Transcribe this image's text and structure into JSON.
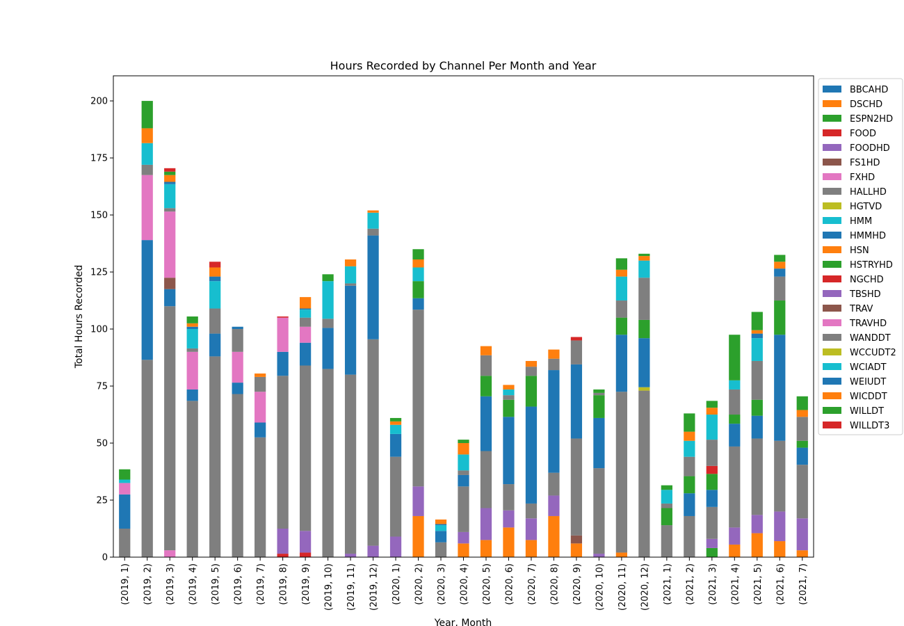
{
  "chart_data": {
    "type": "bar",
    "stacked": true,
    "title": "Hours Recorded by Channel Per Month and Year",
    "xlabel": "Year, Month",
    "ylabel": "Total Hours Recorded",
    "ylim": [
      0,
      211
    ],
    "yticks": [
      0,
      25,
      50,
      75,
      100,
      125,
      150,
      175,
      200
    ],
    "legend_position": "outside-right",
    "categories": [
      "(2019, 1)",
      "(2019, 2)",
      "(2019, 3)",
      "(2019, 4)",
      "(2019, 5)",
      "(2019, 6)",
      "(2019, 7)",
      "(2019, 8)",
      "(2019, 9)",
      "(2019, 10)",
      "(2019, 11)",
      "(2019, 12)",
      "(2020, 1)",
      "(2020, 2)",
      "(2020, 3)",
      "(2020, 4)",
      "(2020, 5)",
      "(2020, 6)",
      "(2020, 7)",
      "(2020, 8)",
      "(2020, 9)",
      "(2020, 10)",
      "(2020, 11)",
      "(2020, 12)",
      "(2021, 1)",
      "(2021, 2)",
      "(2021, 3)",
      "(2021, 4)",
      "(2021, 5)",
      "(2021, 6)",
      "(2021, 7)"
    ],
    "series": [
      {
        "name": "BBCAHD",
        "color": "#1f77b4",
        "values": [
          0,
          0,
          0,
          0,
          0,
          0,
          0,
          0,
          0,
          0,
          0,
          0,
          0,
          0,
          0,
          0,
          0,
          0,
          0,
          0,
          0,
          0,
          0,
          0,
          0,
          0,
          0,
          0,
          0,
          0,
          0
        ]
      },
      {
        "name": "DSCHD",
        "color": "#ff7f0e",
        "values": [
          0,
          0,
          0,
          0,
          0,
          0,
          0,
          0,
          0,
          0,
          0,
          0,
          0,
          18,
          0,
          6,
          7.5,
          13,
          7.5,
          18,
          6,
          0,
          2,
          0,
          0,
          0,
          0,
          5.5,
          10.5,
          7,
          3
        ]
      },
      {
        "name": "ESPN2HD",
        "color": "#2ca02c",
        "values": [
          0,
          0,
          0,
          0,
          0,
          0,
          0,
          0,
          0,
          0,
          0,
          0,
          0,
          0,
          0,
          0,
          0,
          0,
          0,
          0,
          0,
          0,
          0,
          0,
          0,
          0,
          4,
          0,
          0,
          0,
          0
        ]
      },
      {
        "name": "FOOD",
        "color": "#d62728",
        "values": [
          0,
          0,
          0,
          0,
          0,
          0,
          0,
          1.5,
          2,
          0,
          0,
          0,
          0,
          0,
          0,
          0,
          0,
          0,
          0,
          0,
          0,
          0,
          0,
          0,
          0,
          0,
          0,
          0,
          0,
          0,
          0
        ]
      },
      {
        "name": "FOODHD",
        "color": "#9467bd",
        "values": [
          0,
          0,
          0,
          0,
          0,
          0,
          0,
          11,
          9.5,
          0,
          1.5,
          5,
          9,
          13,
          0,
          5,
          14,
          7.5,
          9.5,
          9,
          0,
          1.5,
          0,
          0,
          0,
          0,
          4,
          7.5,
          8,
          13,
          14
        ]
      },
      {
        "name": "FS1HD",
        "color": "#8c564b",
        "values": [
          0,
          0,
          0,
          0,
          0,
          0,
          0,
          0,
          0,
          0,
          0,
          0,
          0,
          0,
          0,
          0,
          0,
          0,
          0,
          0,
          3.5,
          0,
          0,
          0,
          0,
          0,
          0,
          0,
          0,
          0,
          0
        ]
      },
      {
        "name": "FXHD",
        "color": "#e377c2",
        "values": [
          0,
          0,
          3,
          0,
          0,
          0,
          0,
          0,
          0,
          0,
          0,
          0,
          0,
          0,
          0,
          0,
          0,
          0,
          0,
          0,
          0,
          0,
          0,
          0,
          0,
          0,
          0,
          0,
          0,
          0,
          0
        ]
      },
      {
        "name": "HALLHD",
        "color": "#7f7f7f",
        "values": [
          12.5,
          86.5,
          107,
          68.5,
          88,
          71.5,
          52.5,
          67,
          72.5,
          82.5,
          78.5,
          90.5,
          35,
          77.5,
          6.5,
          20,
          25,
          11.5,
          6.5,
          10,
          42.5,
          37.5,
          70.5,
          73,
          14,
          18,
          14,
          35.5,
          33.5,
          31,
          23.5
        ]
      },
      {
        "name": "HGTVD",
        "color": "#bcbd22",
        "values": [
          0,
          0,
          0,
          0,
          0,
          0,
          0,
          0,
          0,
          0,
          0,
          0,
          0,
          0,
          0,
          0,
          0,
          0,
          0,
          0,
          0,
          0,
          0,
          1.5,
          0,
          0,
          0,
          0,
          0,
          0,
          0
        ]
      },
      {
        "name": "HMM",
        "color": "#17becf",
        "values": [
          0,
          0,
          0,
          0,
          0,
          0,
          0,
          0,
          0,
          0,
          0,
          0,
          0,
          0,
          0,
          0,
          0,
          0,
          0,
          0,
          0,
          0,
          0,
          0,
          0,
          0,
          0,
          0,
          0,
          0,
          0
        ]
      },
      {
        "name": "HMMHD",
        "color": "#1f77b4",
        "values": [
          15,
          52.5,
          7.5,
          5,
          10,
          5,
          6.5,
          10.5,
          10,
          18,
          39,
          45.5,
          10,
          5,
          5,
          5,
          24,
          29.5,
          42.5,
          45,
          32.5,
          22,
          25,
          21.5,
          0,
          10,
          7.5,
          10,
          10,
          46.5,
          7.5
        ]
      },
      {
        "name": "HSN",
        "color": "#ff7f0e",
        "values": [
          0,
          0,
          0,
          0,
          0,
          0,
          0,
          0,
          0,
          0,
          0,
          0,
          0,
          0,
          0,
          0,
          0,
          0,
          0,
          0,
          0,
          0,
          0,
          0,
          0,
          0,
          0,
          0,
          0,
          0,
          0
        ]
      },
      {
        "name": "HSTRYHD",
        "color": "#2ca02c",
        "values": [
          0,
          0,
          0,
          0,
          0,
          0,
          0,
          0,
          0,
          0,
          0,
          0,
          0,
          7.5,
          0,
          0,
          9,
          7.5,
          13.5,
          0,
          0,
          10,
          7.5,
          8,
          7.5,
          7.5,
          7,
          4,
          7,
          15,
          3
        ]
      },
      {
        "name": "NGCHD",
        "color": "#d62728",
        "values": [
          0,
          0,
          0,
          0,
          0,
          0,
          0,
          0,
          0,
          0,
          0,
          0,
          0,
          0,
          0,
          0,
          0,
          0,
          0,
          0,
          0,
          0,
          0,
          0,
          0,
          0,
          3.5,
          0,
          0,
          0,
          0
        ]
      },
      {
        "name": "TBSHD",
        "color": "#9467bd",
        "values": [
          0,
          0,
          0,
          0,
          0,
          0,
          0,
          0,
          0,
          0,
          0,
          0,
          0,
          0,
          0,
          0,
          0,
          0,
          0,
          0,
          0,
          0,
          0,
          0,
          0,
          0,
          0,
          0,
          0,
          0,
          0
        ]
      },
      {
        "name": "TRAV",
        "color": "#8c564b",
        "values": [
          0,
          0,
          5,
          0,
          0,
          0,
          0,
          0,
          0,
          0,
          0,
          0,
          0,
          0,
          0,
          0,
          0,
          0,
          0,
          0,
          0,
          0,
          0,
          0,
          0,
          0,
          0,
          0,
          0,
          0,
          0
        ]
      },
      {
        "name": "TRAVHD",
        "color": "#e377c2",
        "values": [
          5,
          28.5,
          29,
          16.5,
          0,
          13.5,
          13.5,
          15,
          7,
          0,
          0,
          0,
          0,
          0,
          0,
          0,
          0,
          0,
          0,
          0,
          0,
          0,
          0,
          0,
          0,
          0,
          0,
          0,
          0,
          0,
          0
        ]
      },
      {
        "name": "WANDDT",
        "color": "#7f7f7f",
        "values": [
          0,
          4.5,
          1.5,
          1.5,
          11,
          10,
          6.5,
          0,
          4,
          4,
          1,
          3,
          0,
          0,
          0,
          2,
          9,
          2,
          4,
          5,
          10.5,
          1,
          7.5,
          18.5,
          2,
          8.5,
          11.5,
          11,
          17,
          10.5,
          10.5
        ]
      },
      {
        "name": "WCCUDT2",
        "color": "#bcbd22",
        "values": [
          0,
          0,
          0,
          0,
          0,
          0,
          0,
          0,
          0,
          0,
          0,
          0,
          0,
          0,
          0,
          0,
          0,
          0,
          0,
          0,
          0,
          0,
          0,
          0,
          0,
          0,
          0,
          0,
          0,
          0,
          0
        ]
      },
      {
        "name": "WCIADT",
        "color": "#17becf",
        "values": [
          1.5,
          9.5,
          10.5,
          8.5,
          12,
          0,
          0,
          0,
          3.5,
          16.5,
          7.5,
          7,
          4,
          6,
          2.5,
          7,
          0,
          2.5,
          0,
          0,
          0,
          0,
          10.5,
          7.5,
          6,
          7,
          11,
          4,
          10,
          0,
          0
        ]
      },
      {
        "name": "WEIUDT",
        "color": "#1f77b4",
        "values": [
          0,
          0,
          1,
          1,
          2,
          1,
          0,
          0,
          0.5,
          0,
          0,
          0,
          0,
          0,
          0.5,
          0,
          0,
          0,
          0,
          0,
          0,
          0,
          0,
          0,
          0,
          0,
          0,
          0,
          2,
          3.5,
          0
        ]
      },
      {
        "name": "WICDDT",
        "color": "#ff7f0e",
        "values": [
          0,
          6.5,
          3,
          1.5,
          4,
          0,
          1.5,
          0,
          5,
          0,
          3,
          1,
          1.5,
          3.5,
          2,
          5,
          4,
          2,
          2.5,
          4,
          0,
          0,
          3,
          2,
          0,
          4,
          3,
          0,
          1.5,
          3,
          3
        ]
      },
      {
        "name": "WILLDT",
        "color": "#2ca02c",
        "values": [
          4.5,
          12,
          1.5,
          3,
          0,
          0,
          0,
          0,
          0,
          3,
          0,
          0,
          1.5,
          4.5,
          0,
          1.5,
          0,
          0,
          0,
          0,
          0,
          1.5,
          5,
          1,
          2,
          8,
          3,
          20,
          8,
          3,
          6
        ]
      },
      {
        "name": "WILLDT3",
        "color": "#d62728",
        "values": [
          0,
          0,
          1.5,
          0,
          2.5,
          0,
          0,
          0.5,
          0,
          0,
          0,
          0,
          0,
          0,
          0,
          0,
          0,
          0,
          0,
          0,
          1.5,
          0,
          0,
          0,
          0,
          0,
          0,
          0,
          0,
          0,
          0
        ]
      }
    ]
  }
}
